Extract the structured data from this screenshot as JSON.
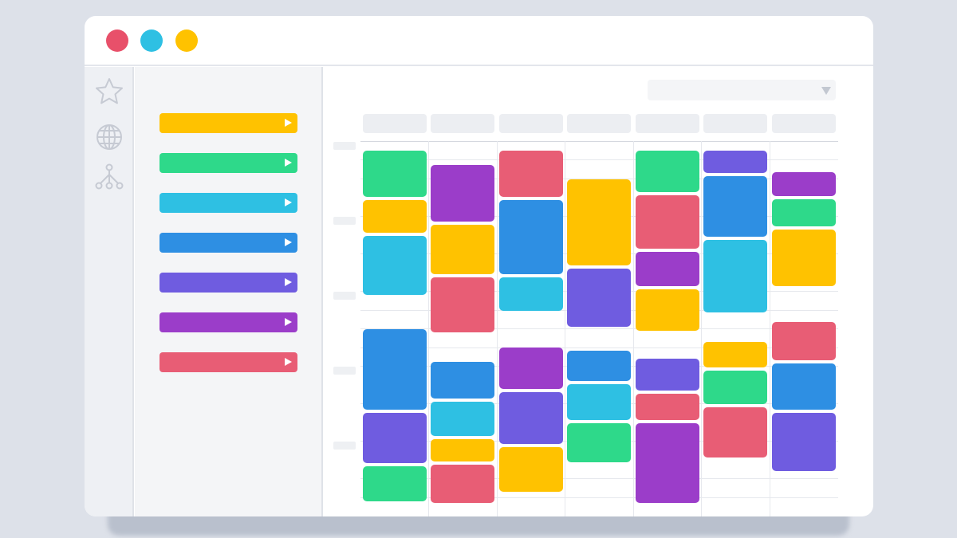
{
  "window": {
    "traffic_lights": [
      "#e8506a",
      "#2ec0e3",
      "#ffc200"
    ]
  },
  "rail": {
    "icons": [
      "star-icon",
      "globe-icon",
      "network-icon"
    ]
  },
  "sidebar": {
    "categories": [
      {
        "color": "#ffc200"
      },
      {
        "color": "#2ed98a"
      },
      {
        "color": "#2ec0e3"
      },
      {
        "color": "#2e8fe3"
      },
      {
        "color": "#6f5ce0"
      },
      {
        "color": "#9b3dc9"
      },
      {
        "color": "#e85d75"
      }
    ]
  },
  "calendar": {
    "days": 7,
    "columns": [
      [
        "#2ed98a",
        "#ffc200",
        "#2ec0e3",
        "#2e8fe3",
        "#6f5ce0",
        "#2ed98a"
      ],
      [
        "#9b3dc9",
        "#ffc200",
        "#e85d75",
        "#2e8fe3",
        "#2ec0e3",
        "#ffc200",
        "#e85d75"
      ],
      [
        "#e85d75",
        "#2e8fe3",
        "#2ec0e3",
        "#9b3dc9",
        "#6f5ce0",
        "#ffc200"
      ],
      [
        "#ffc200",
        "#6f5ce0",
        "#2e8fe3",
        "#2ec0e3",
        "#2ed98a"
      ],
      [
        "#2ed98a",
        "#e85d75",
        "#9b3dc9",
        "#ffc200",
        "#6f5ce0",
        "#e85d75",
        "#9b3dc9"
      ],
      [
        "#6f5ce0",
        "#2e8fe3",
        "#2ec0e3",
        "#ffc200",
        "#2ed98a",
        "#e85d75"
      ],
      [
        "#9b3dc9",
        "#2ed98a",
        "#ffc200",
        "#e85d75",
        "#2e8fe3",
        "#6f5ce0"
      ]
    ]
  }
}
